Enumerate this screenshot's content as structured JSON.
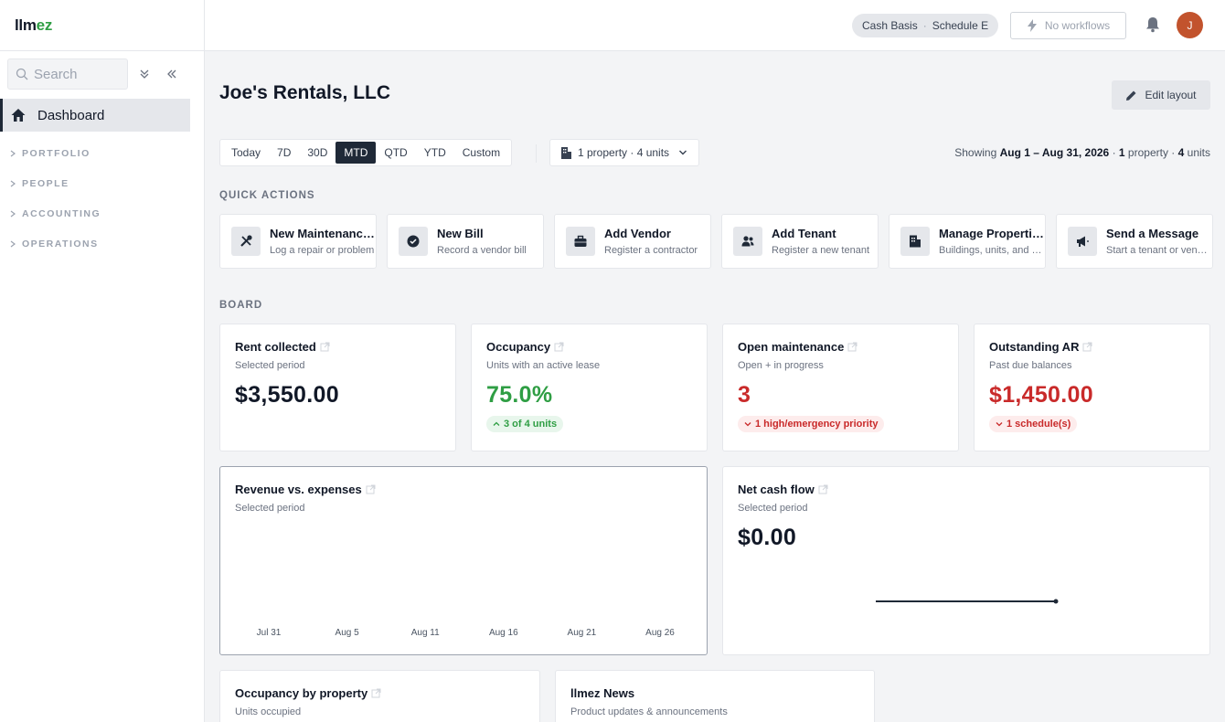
{
  "app": {
    "logo_a": "llm",
    "logo_b": "ez"
  },
  "sidebar": {
    "search_placeholder": "Search",
    "active": "Dashboard",
    "sections": [
      "PORTFOLIO",
      "PEOPLE",
      "ACCOUNTING",
      "OPERATIONS"
    ]
  },
  "topbar": {
    "basis": "Cash Basis",
    "separator": "·",
    "schedule": "Schedule E",
    "workflows": "No workflows",
    "avatar_initial": "J"
  },
  "page": {
    "title": "Joe's Rentals, LLC",
    "edit_layout": "Edit layout"
  },
  "ranges": [
    "Today",
    "7D",
    "30D",
    "MTD",
    "QTD",
    "YTD",
    "Custom"
  ],
  "active_range": "MTD",
  "property_filter": "1 property · 4 units",
  "showing": {
    "prefix": "Showing",
    "dates": "Aug 1 – Aug 31, 2026",
    "sep": " · ",
    "prop_count": "1",
    "prop_label": " property · ",
    "unit_count": "4",
    "unit_label": " units"
  },
  "quick_actions": {
    "label": "QUICK ACTIONS",
    "items": [
      {
        "title": "New Maintenance Request",
        "sub": "Log a repair or problem",
        "icon": "wrench-screwdriver-icon"
      },
      {
        "title": "New Bill",
        "sub": "Record a vendor bill",
        "icon": "check-circle-icon"
      },
      {
        "title": "Add Vendor",
        "sub": "Register a contractor",
        "icon": "briefcase-icon"
      },
      {
        "title": "Add Tenant",
        "sub": "Register a new tenant",
        "icon": "users-icon"
      },
      {
        "title": "Manage Properties",
        "sub": "Buildings, units, and more",
        "icon": "building-icon"
      },
      {
        "title": "Send a Message",
        "sub": "Start a tenant or vendor conversation",
        "icon": "megaphone-icon"
      }
    ]
  },
  "board": {
    "label": "BOARD",
    "kpis": [
      {
        "title": "Rent collected",
        "sub": "Selected period",
        "value": "$3,550.00",
        "color": "#111827"
      },
      {
        "title": "Occupancy",
        "sub": "Units with an active lease",
        "value": "75.0%",
        "color": "#2f9e44",
        "badge": "3 of 4 units",
        "badge_tone": "green"
      },
      {
        "title": "Open maintenance",
        "sub": "Open + in progress",
        "value": "3",
        "color": "#c92a2a",
        "badge": "1 high/emergency priority",
        "badge_tone": "red"
      },
      {
        "title": "Outstanding AR",
        "sub": "Past due balances",
        "value": "$1,450.00",
        "color": "#c92a2a",
        "badge": "1 schedule(s)",
        "badge_tone": "red"
      }
    ]
  },
  "revenue_panel": {
    "title": "Revenue vs. expenses",
    "sub": "Selected period"
  },
  "netcash_panel": {
    "title": "Net cash flow",
    "sub": "Selected period",
    "value": "$0.00"
  },
  "occupancy_panel": {
    "title": "Occupancy by property",
    "sub": "Units occupied"
  },
  "news_panel": {
    "title": "llmez News",
    "sub": "Product updates & announcements"
  },
  "chart_data": [
    {
      "type": "bar",
      "x": [
        "Jul 31",
        "Aug 5",
        "Aug 11",
        "Aug 16",
        "Aug 21",
        "Aug 26"
      ],
      "series": []
    },
    {
      "type": "line",
      "values": [
        0,
        0
      ]
    }
  ]
}
